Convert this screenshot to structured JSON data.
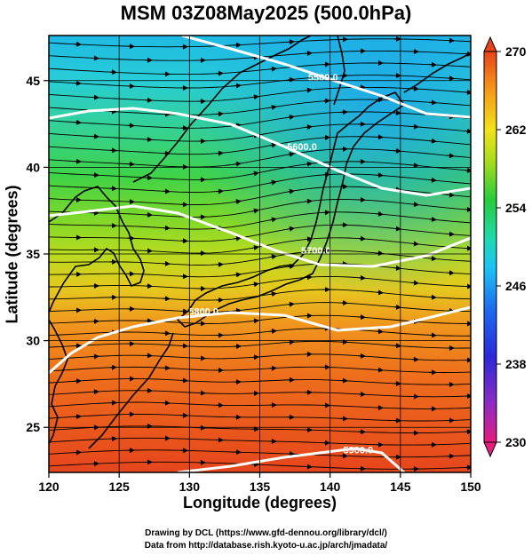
{
  "title": "MSM 03Z08May2025 (500.0hPa)",
  "xlabel": "Longitude (degrees)",
  "ylabel": "Latitude  (degrees)",
  "credit_line1": "Drawing by DCL (https://www.gfd-dennou.org/library/dcl/)",
  "credit_line2": "Data from http://database.rish.kyoto-u.ac.jp/arch/jmadata/",
  "map": {
    "xlim": [
      120,
      150
    ],
    "ylim": [
      22.4,
      47.6
    ],
    "x_ticks": [
      "120",
      "125",
      "130",
      "135",
      "140",
      "145",
      "150"
    ],
    "y_ticks": [
      "25",
      "30",
      "35",
      "40",
      "45"
    ],
    "grid": "on",
    "background_field": "temperature (K)",
    "vector_field": "streamlines, mostly westerly",
    "contours": [
      {
        "label": "5500.0",
        "lon": 139.5,
        "lat": 45.0
      },
      {
        "label": "5600.0",
        "lon": 138.0,
        "lat": 41.0
      },
      {
        "label": "5700.0",
        "lon": 139.0,
        "lat": 35.0
      },
      {
        "label": "5800.0",
        "lon": 131.0,
        "lat": 31.5
      },
      {
        "label": "5900.0",
        "lon": 142.0,
        "lat": 23.5
      }
    ]
  },
  "colorbar": {
    "min": 230,
    "max": 270,
    "tick_labels": [
      "270",
      "262",
      "254",
      "246",
      "238",
      "230"
    ],
    "colors": [
      "#e61d7d",
      "#8d2bc4",
      "#2a2ad8",
      "#1d6bf0",
      "#1ec4f5",
      "#20d8b0",
      "#27cc3c",
      "#a9dc1e",
      "#f2e21a",
      "#f59a1a",
      "#e7441c"
    ]
  }
}
